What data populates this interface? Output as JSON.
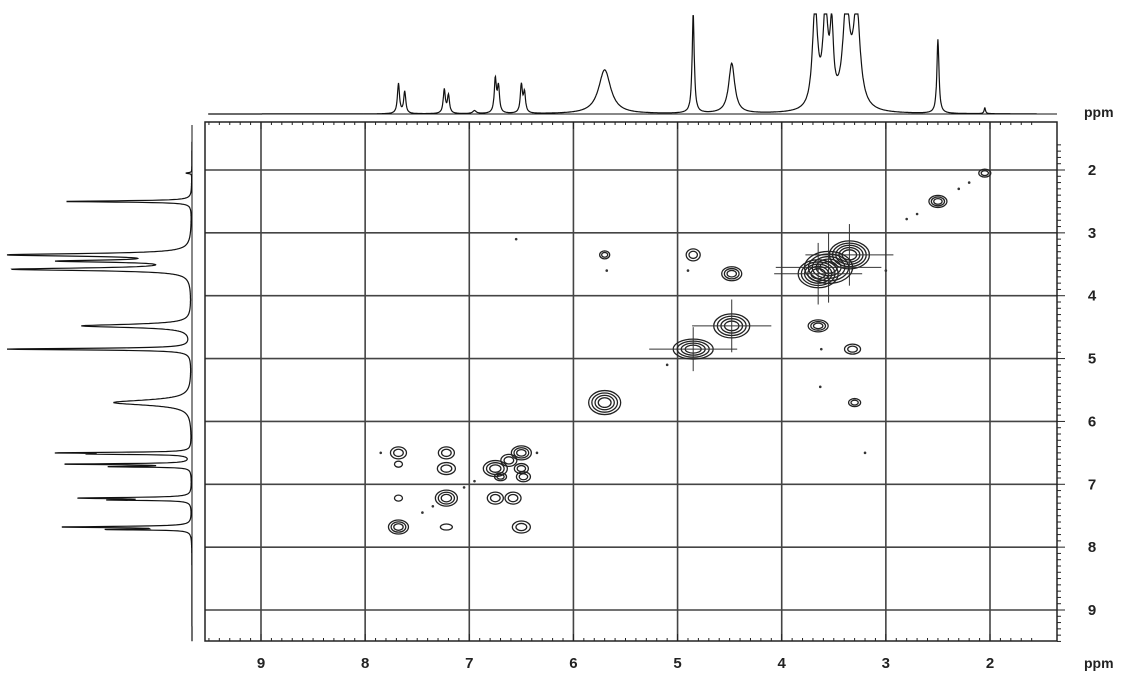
{
  "chart_data": {
    "type": "contour",
    "description_type": "2D homonuclear correlation (COSY-style) NMR spectrum with 1D projections",
    "x_axis": {
      "unit": "ppm",
      "range": [
        9.5,
        1.5
      ],
      "ticks": [
        9,
        8,
        7,
        6,
        5,
        4,
        3,
        2
      ],
      "reversed": true
    },
    "y_axis": {
      "unit": "ppm",
      "range": [
        1.5,
        9.5
      ],
      "ticks": [
        2,
        3,
        4,
        5,
        6,
        7,
        8,
        9
      ],
      "position": "right"
    },
    "grid": true,
    "top_projection_peaks_ppm": [
      7.68,
      7.22,
      6.75,
      6.5,
      5.7,
      4.85,
      4.48,
      3.65,
      3.55,
      3.35,
      2.5,
      2.05
    ],
    "left_projection_peaks_ppm": [
      2.5,
      3.35,
      3.55,
      4.48,
      4.85,
      5.7,
      6.5,
      6.75,
      7.22,
      7.68
    ],
    "diagonal_peaks_ppm": [
      2.05,
      2.5,
      3.35,
      3.55,
      3.65,
      4.48,
      4.85,
      5.7,
      6.5,
      6.75,
      7.22,
      7.68
    ],
    "cross_peaks_ppm": [
      [
        5.7,
        3.35
      ],
      [
        4.85,
        3.35
      ],
      [
        4.48,
        3.65
      ],
      [
        3.65,
        4.48
      ],
      [
        3.35,
        4.85
      ],
      [
        3.35,
        5.7
      ],
      [
        7.68,
        6.5
      ],
      [
        7.22,
        6.5
      ],
      [
        7.22,
        6.75
      ],
      [
        6.75,
        6.5
      ],
      [
        6.5,
        6.75
      ],
      [
        6.5,
        6.9
      ],
      [
        7.68,
        7.22
      ],
      [
        7.22,
        7.68
      ],
      [
        6.75,
        7.22
      ],
      [
        6.5,
        7.22
      ],
      [
        7.22,
        7.68
      ],
      [
        6.5,
        7.68
      ],
      [
        7.68,
        6.65
      ],
      [
        6.75,
        7.68
      ]
    ]
  },
  "labels": {
    "top_unit": "ppm",
    "right_unit": "ppm"
  }
}
